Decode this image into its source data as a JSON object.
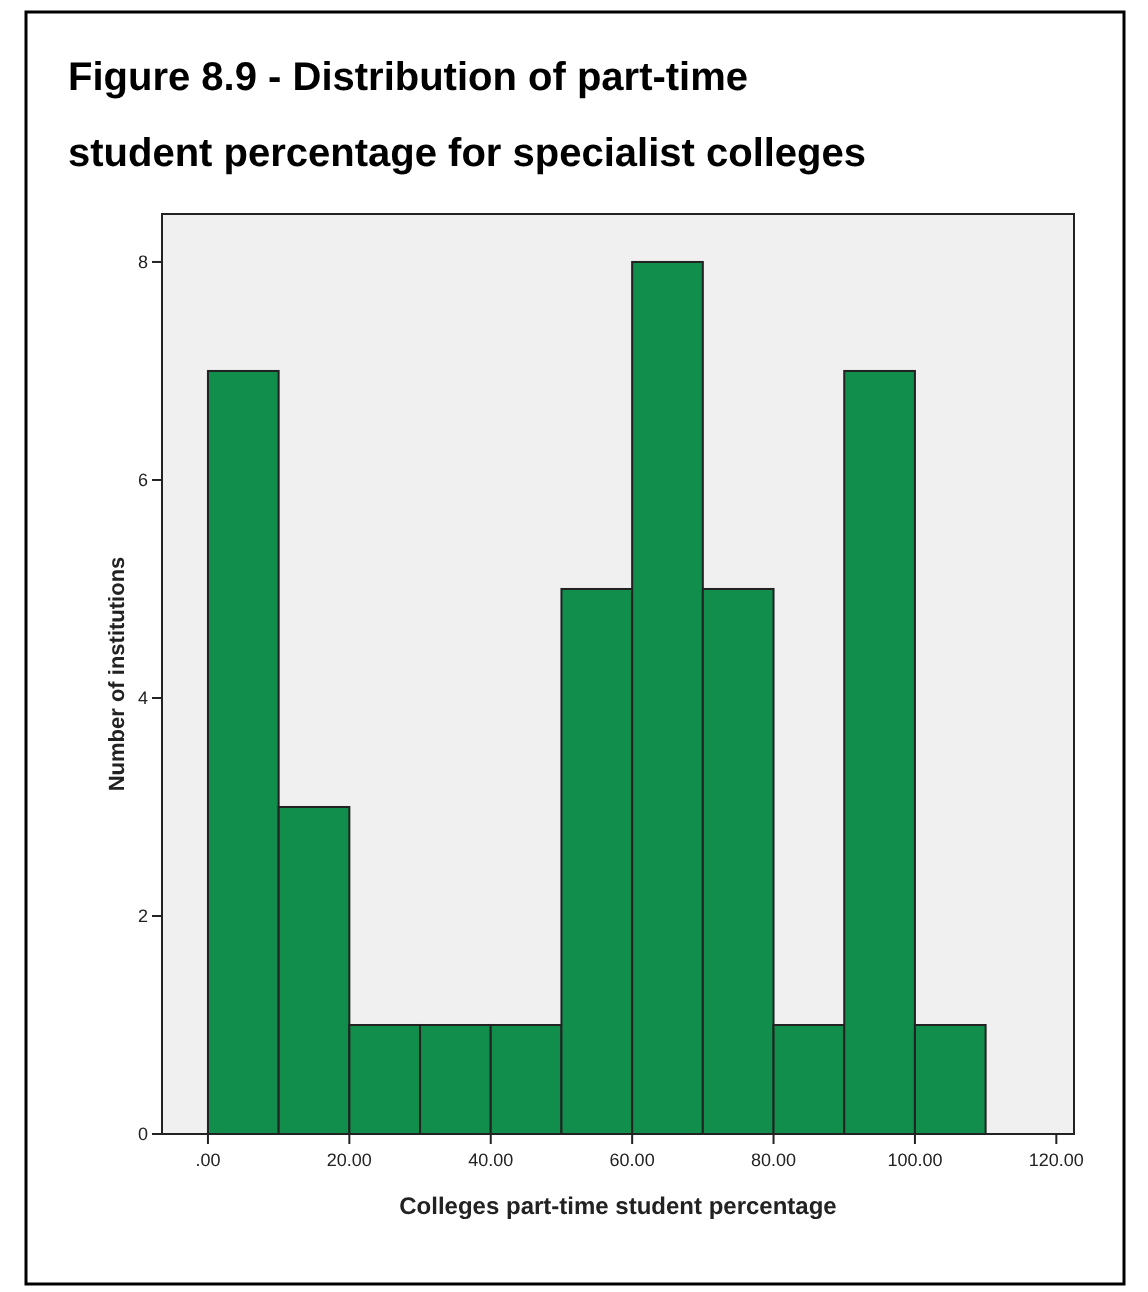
{
  "chart_data": {
    "type": "histogram",
    "title": "Figure 8.9 - Distribution of part-time student percentage for specialist colleges",
    "xlabel": "Colleges part-time student percentage",
    "ylabel": "Number of institutions",
    "bins": [
      0,
      10,
      20,
      30,
      40,
      50,
      60,
      70,
      80,
      90,
      100,
      110
    ],
    "values": [
      7,
      3,
      1,
      1,
      1,
      5,
      8,
      5,
      1,
      7,
      1
    ],
    "color": "#118d4c",
    "xlim": [
      -6.5,
      122.5
    ],
    "xticks": [
      {
        "value": 0,
        "label": ".00"
      },
      {
        "value": 20,
        "label": "20.00"
      },
      {
        "value": 40,
        "label": "40.00"
      },
      {
        "value": 60,
        "label": "60.00"
      },
      {
        "value": 80,
        "label": "80.00"
      },
      {
        "value": 100,
        "label": "100.00"
      },
      {
        "value": 120,
        "label": "120.00"
      }
    ],
    "ylim": [
      0,
      8.44
    ],
    "yticks": [
      0,
      2,
      4,
      6,
      8
    ],
    "grid": false
  }
}
